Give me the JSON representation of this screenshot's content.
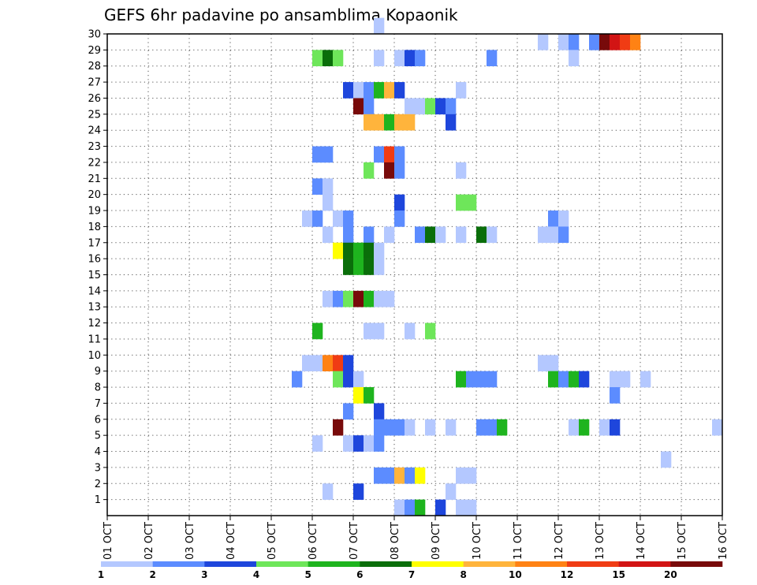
{
  "chart_data": {
    "type": "heatmap",
    "title": "GEFS 6hr padavine po ansamblima Kopaonik",
    "xlabel": "",
    "ylabel": "",
    "x_ticks": [
      "01 OCT",
      "02 OCT",
      "03 OCT",
      "04 OCT",
      "05 OCT",
      "06 OCT",
      "07 OCT",
      "08 OCT",
      "09 OCT",
      "10 OCT",
      "11 OCT",
      "12 OCT",
      "13 OCT",
      "14 OCT",
      "15 OCT",
      "16 OCT"
    ],
    "y_ticks": [
      1,
      2,
      3,
      4,
      5,
      6,
      7,
      8,
      9,
      10,
      11,
      12,
      13,
      14,
      15,
      16,
      17,
      18,
      19,
      20,
      21,
      22,
      23,
      24,
      25,
      26,
      27,
      28,
      29,
      30
    ],
    "xlim_days": [
      1,
      16
    ],
    "ylim_members": [
      0,
      30
    ],
    "time_step_hours": 6,
    "grid": "dotted",
    "colorbar": {
      "levels": [
        1,
        2,
        3,
        4,
        5,
        6,
        7,
        8,
        10,
        12,
        15,
        20
      ],
      "colors": [
        "#b4c8ff",
        "#5c8cff",
        "#1e46dc",
        "#6ee65a",
        "#1eb41e",
        "#0a6e0a",
        "#ffff00",
        "#ffb43c",
        "#ff8214",
        "#f03c14",
        "#d21414",
        "#780a0a"
      ]
    },
    "cells_note": "[member, time step since 01 OCT 00Z (x = day + step/4), colour class index 0..11]",
    "cells": [
      [
        30,
        26,
        0
      ],
      [
        29,
        42,
        0
      ],
      [
        29,
        44,
        0
      ],
      [
        29,
        45,
        1
      ],
      [
        29,
        47,
        1
      ],
      [
        29,
        48,
        11
      ],
      [
        29,
        49,
        10
      ],
      [
        29,
        50,
        9
      ],
      [
        29,
        51,
        8
      ],
      [
        28,
        20,
        3
      ],
      [
        28,
        21,
        5
      ],
      [
        28,
        22,
        3
      ],
      [
        28,
        26,
        0
      ],
      [
        28,
        28,
        0
      ],
      [
        28,
        29,
        2
      ],
      [
        28,
        30,
        1
      ],
      [
        28,
        37,
        1
      ],
      [
        28,
        45,
        0
      ],
      [
        26,
        23,
        2
      ],
      [
        26,
        24,
        0
      ],
      [
        26,
        25,
        1
      ],
      [
        26,
        26,
        4
      ],
      [
        26,
        27,
        7
      ],
      [
        26,
        28,
        2
      ],
      [
        26,
        34,
        0
      ],
      [
        25,
        24,
        11
      ],
      [
        25,
        25,
        1
      ],
      [
        25,
        29,
        0
      ],
      [
        25,
        30,
        0
      ],
      [
        25,
        31,
        3
      ],
      [
        25,
        32,
        2
      ],
      [
        25,
        33,
        1
      ],
      [
        24,
        25,
        7
      ],
      [
        24,
        26,
        7
      ],
      [
        24,
        27,
        4
      ],
      [
        24,
        28,
        7
      ],
      [
        24,
        29,
        7
      ],
      [
        24,
        33,
        2
      ],
      [
        22,
        20,
        1
      ],
      [
        22,
        21,
        1
      ],
      [
        22,
        26,
        1
      ],
      [
        22,
        27,
        9
      ],
      [
        22,
        28,
        1
      ],
      [
        21,
        25,
        3
      ],
      [
        21,
        27,
        11
      ],
      [
        21,
        28,
        1
      ],
      [
        21,
        34,
        0
      ],
      [
        20,
        20,
        1
      ],
      [
        20,
        21,
        0
      ],
      [
        19,
        21,
        0
      ],
      [
        19,
        28,
        2
      ],
      [
        19,
        34,
        3
      ],
      [
        19,
        35,
        3
      ],
      [
        18,
        19,
        0
      ],
      [
        18,
        20,
        1
      ],
      [
        18,
        22,
        0
      ],
      [
        18,
        23,
        1
      ],
      [
        18,
        28,
        1
      ],
      [
        18,
        43,
        1
      ],
      [
        18,
        44,
        0
      ],
      [
        17,
        21,
        0
      ],
      [
        17,
        23,
        1
      ],
      [
        17,
        25,
        1
      ],
      [
        17,
        27,
        0
      ],
      [
        17,
        30,
        1
      ],
      [
        17,
        31,
        5
      ],
      [
        17,
        32,
        0
      ],
      [
        17,
        34,
        0
      ],
      [
        17,
        36,
        5
      ],
      [
        17,
        37,
        0
      ],
      [
        17,
        42,
        0
      ],
      [
        17,
        43,
        0
      ],
      [
        17,
        44,
        1
      ],
      [
        16,
        22,
        6
      ],
      [
        16,
        23,
        5
      ],
      [
        16,
        24,
        4
      ],
      [
        16,
        25,
        5
      ],
      [
        16,
        26,
        0
      ],
      [
        15,
        23,
        5
      ],
      [
        15,
        24,
        4
      ],
      [
        15,
        25,
        5
      ],
      [
        15,
        26,
        0
      ],
      [
        13,
        21,
        0
      ],
      [
        13,
        22,
        1
      ],
      [
        13,
        23,
        3
      ],
      [
        13,
        24,
        11
      ],
      [
        13,
        25,
        4
      ],
      [
        13,
        26,
        0
      ],
      [
        13,
        27,
        0
      ],
      [
        11,
        20,
        4
      ],
      [
        11,
        25,
        0
      ],
      [
        11,
        26,
        0
      ],
      [
        11,
        29,
        0
      ],
      [
        11,
        31,
        3
      ],
      [
        9,
        19,
        0
      ],
      [
        9,
        20,
        0
      ],
      [
        9,
        21,
        8
      ],
      [
        9,
        22,
        9
      ],
      [
        9,
        23,
        2
      ],
      [
        9,
        42,
        0
      ],
      [
        9,
        43,
        0
      ],
      [
        8,
        18,
        1
      ],
      [
        8,
        22,
        3
      ],
      [
        8,
        23,
        2
      ],
      [
        8,
        24,
        0
      ],
      [
        8,
        34,
        4
      ],
      [
        8,
        35,
        1
      ],
      [
        8,
        36,
        1
      ],
      [
        8,
        37,
        1
      ],
      [
        8,
        43,
        4
      ],
      [
        8,
        44,
        1
      ],
      [
        8,
        45,
        4
      ],
      [
        8,
        46,
        2
      ],
      [
        8,
        49,
        0
      ],
      [
        8,
        50,
        0
      ],
      [
        8,
        52,
        0
      ],
      [
        7,
        24,
        6
      ],
      [
        7,
        25,
        4
      ],
      [
        7,
        49,
        1
      ],
      [
        6,
        23,
        1
      ],
      [
        6,
        26,
        2
      ],
      [
        5,
        22,
        11
      ],
      [
        5,
        26,
        1
      ],
      [
        5,
        27,
        1
      ],
      [
        5,
        28,
        1
      ],
      [
        5,
        29,
        0
      ],
      [
        5,
        31,
        0
      ],
      [
        5,
        33,
        0
      ],
      [
        5,
        36,
        1
      ],
      [
        5,
        37,
        1
      ],
      [
        5,
        38,
        4
      ],
      [
        5,
        45,
        0
      ],
      [
        5,
        46,
        4
      ],
      [
        5,
        48,
        0
      ],
      [
        5,
        49,
        2
      ],
      [
        5,
        59,
        0
      ],
      [
        4,
        20,
        0
      ],
      [
        4,
        23,
        0
      ],
      [
        4,
        24,
        2
      ],
      [
        4,
        25,
        0
      ],
      [
        4,
        26,
        1
      ],
      [
        3,
        54,
        0
      ],
      [
        2,
        26,
        1
      ],
      [
        2,
        27,
        1
      ],
      [
        2,
        28,
        7
      ],
      [
        2,
        29,
        1
      ],
      [
        2,
        30,
        6
      ],
      [
        2,
        34,
        0
      ],
      [
        2,
        35,
        0
      ],
      [
        1,
        21,
        0
      ],
      [
        1,
        24,
        2
      ],
      [
        1,
        33,
        0
      ],
      [
        0,
        28,
        0
      ],
      [
        0,
        29,
        1
      ],
      [
        0,
        30,
        4
      ],
      [
        0,
        32,
        2
      ],
      [
        0,
        34,
        0
      ],
      [
        0,
        35,
        0
      ]
    ]
  }
}
